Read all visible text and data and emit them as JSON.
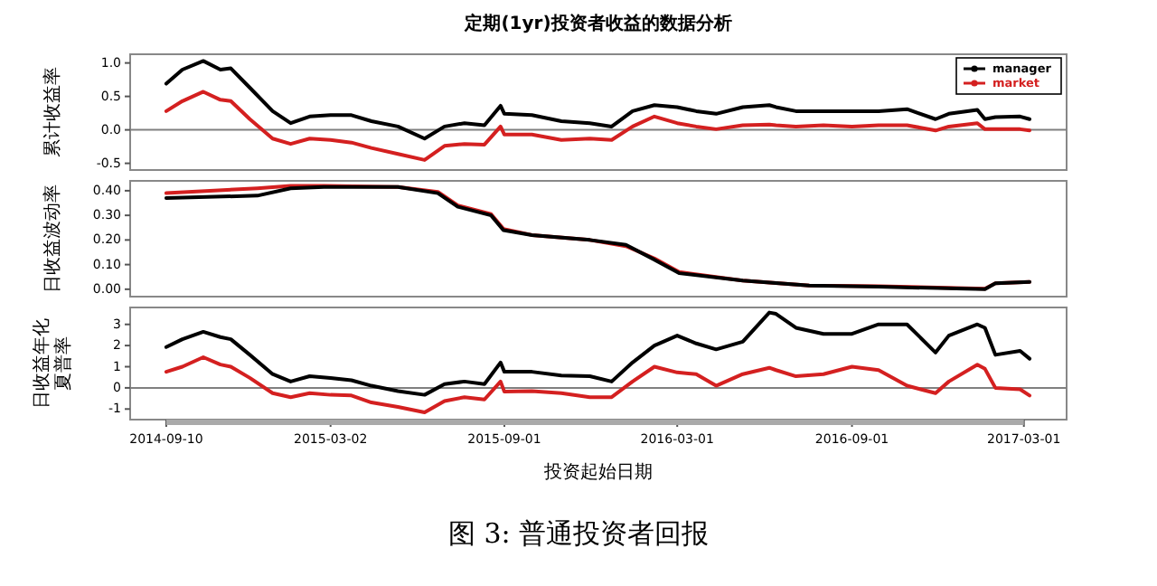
{
  "chart_data": [
    {
      "type": "line",
      "title": "定期(1yr)投资者收益的数据分析",
      "ylabel": "累计收益率",
      "legend": "top right",
      "tick_labels": "y",
      "xlim": [
        "2014-08-03",
        "2017-04-15"
      ],
      "ylim": [
        -0.6,
        1.13
      ],
      "yticks": [
        {
          "value": -0.5,
          "label": "-0.5"
        },
        {
          "value": 0,
          "label": "0.0"
        },
        {
          "value": 0.5,
          "label": "0.5"
        },
        {
          "value": 1,
          "label": "1.0"
        }
      ],
      "ref_lines": [
        {
          "axis": "y",
          "value": 0,
          "color": "#808080"
        }
      ],
      "x": [
        "2014-09-10",
        "2014-09-27",
        "2014-10-19",
        "2014-11-06",
        "2014-11-17",
        "2014-12-07",
        "2014-12-31",
        "2015-01-19",
        "2015-02-08",
        "2015-03-02",
        "2015-03-24",
        "2015-04-14",
        "2015-05-12",
        "2015-06-09",
        "2015-06-30",
        "2015-07-21",
        "2015-08-11",
        "2015-08-28",
        "2015-09-01",
        "2015-09-30",
        "2015-10-31",
        "2015-11-30",
        "2015-12-23",
        "2016-01-14",
        "2016-02-06",
        "2016-03-01",
        "2016-03-21",
        "2016-04-11",
        "2016-05-09",
        "2016-06-06",
        "2016-06-13",
        "2016-07-04",
        "2016-08-02",
        "2016-09-01",
        "2016-09-29",
        "2016-10-29",
        "2016-11-28",
        "2016-12-12",
        "2017-01-11",
        "2017-01-19",
        "2017-01-30",
        "2017-02-25",
        "2017-03-07"
      ],
      "series": [
        {
          "name": "manager",
          "color": "#000000",
          "values": [
            0.69,
            0.9,
            1.03,
            0.9,
            0.92,
            0.63,
            0.28,
            0.1,
            0.2,
            0.22,
            0.22,
            0.13,
            0.05,
            -0.13,
            0.05,
            0.1,
            0.07,
            0.36,
            0.24,
            0.22,
            0.13,
            0.1,
            0.05,
            0.28,
            0.37,
            0.34,
            0.28,
            0.24,
            0.34,
            0.37,
            0.34,
            0.28,
            0.28,
            0.28,
            0.28,
            0.31,
            0.16,
            0.24,
            0.3,
            0.16,
            0.19,
            0.2,
            0.16
          ]
        },
        {
          "name": "market",
          "color": "#d42020",
          "values": [
            0.28,
            0.43,
            0.57,
            0.45,
            0.43,
            0.16,
            -0.13,
            -0.21,
            -0.13,
            -0.15,
            -0.19,
            -0.27,
            -0.36,
            -0.45,
            -0.24,
            -0.21,
            -0.22,
            0.05,
            -0.07,
            -0.07,
            -0.15,
            -0.13,
            -0.15,
            0.05,
            0.2,
            0.1,
            0.05,
            0.01,
            0.07,
            0.08,
            0.07,
            0.05,
            0.07,
            0.05,
            0.07,
            0.07,
            -0.01,
            0.05,
            0.1,
            0.01,
            0.01,
            0.01,
            -0.01
          ]
        }
      ]
    },
    {
      "type": "line",
      "ylabel": "日收益波动率",
      "tick_labels": "y",
      "xlim": [
        "2014-08-03",
        "2017-04-15"
      ],
      "ylim": [
        -0.03,
        0.44
      ],
      "yticks": [
        {
          "value": 0,
          "label": "0.00"
        },
        {
          "value": 0.1,
          "label": "0.10"
        },
        {
          "value": 0.2,
          "label": "0.20"
        },
        {
          "value": 0.3,
          "label": "0.30"
        },
        {
          "value": 0.4,
          "label": "0.40"
        }
      ],
      "x": [
        "2014-09-10",
        "2014-12-15",
        "2015-01-19",
        "2015-02-23",
        "2015-05-12",
        "2015-06-23",
        "2015-07-14",
        "2015-08-18",
        "2015-08-31",
        "2015-09-30",
        "2015-11-30",
        "2016-01-07",
        "2016-02-06",
        "2016-03-03",
        "2016-05-09",
        "2016-07-18",
        "2016-09-29",
        "2017-01-19",
        "2017-01-30",
        "2017-03-07"
      ],
      "series": [
        {
          "color": "#d42020",
          "values": [
            0.39,
            0.41,
            0.42,
            0.42,
            0.415,
            0.395,
            0.34,
            0.305,
            0.245,
            0.22,
            0.2,
            0.175,
            0.125,
            0.07,
            0.035,
            0.015,
            0.012,
            0.002,
            0.024,
            0.03
          ]
        },
        {
          "color": "#000000",
          "values": [
            0.37,
            0.38,
            0.41,
            0.415,
            0.415,
            0.39,
            0.335,
            0.3,
            0.24,
            0.22,
            0.2,
            0.18,
            0.12,
            0.065,
            0.035,
            0.015,
            0.01,
            0.0,
            0.024,
            0.03
          ]
        }
      ]
    },
    {
      "type": "line",
      "ylabel": "日收益年化夏普率",
      "xlabel": "投资起始日期",
      "annotations": [
        "图 3: 普通投资者回报"
      ],
      "xlim": [
        "2014-08-03",
        "2017-04-15"
      ],
      "xticks": [
        {
          "value": "2014-09-10",
          "label": "2014-09-10"
        },
        {
          "value": "2015-03-02",
          "label": "2015-03-02"
        },
        {
          "value": "2015-09-01",
          "label": "2015-09-01"
        },
        {
          "value": "2016-03-01",
          "label": "2016-03-01"
        },
        {
          "value": "2016-09-01",
          "label": "2016-09-01"
        },
        {
          "value": "2017-03-01",
          "label": "2017-03-01"
        }
      ],
      "ylim": [
        -1.5,
        3.8
      ],
      "yticks": [
        -1,
        0,
        1,
        2,
        3
      ],
      "ref_lines": [
        {
          "axis": "y",
          "value": 0,
          "color": "#808080"
        }
      ],
      "x": [
        "2014-09-10",
        "2014-09-27",
        "2014-10-19",
        "2014-11-06",
        "2014-11-17",
        "2014-12-07",
        "2014-12-31",
        "2015-01-19",
        "2015-02-08",
        "2015-03-02",
        "2015-03-24",
        "2015-04-14",
        "2015-05-12",
        "2015-06-09",
        "2015-06-30",
        "2015-07-21",
        "2015-08-11",
        "2015-08-28",
        "2015-09-01",
        "2015-09-30",
        "2015-10-31",
        "2015-11-30",
        "2015-12-23",
        "2016-01-14",
        "2016-02-06",
        "2016-03-01",
        "2016-03-21",
        "2016-04-11",
        "2016-05-09",
        "2016-06-06",
        "2016-06-13",
        "2016-07-04",
        "2016-08-02",
        "2016-09-01",
        "2016-09-29",
        "2016-10-29",
        "2016-11-28",
        "2016-12-12",
        "2017-01-11",
        "2017-01-19",
        "2017-01-30",
        "2017-02-25",
        "2017-03-07"
      ],
      "series": [
        {
          "color": "#000000",
          "values": [
            1.93,
            2.3,
            2.65,
            2.4,
            2.3,
            1.56,
            0.65,
            0.3,
            0.55,
            0.47,
            0.36,
            0.1,
            -0.15,
            -0.33,
            0.18,
            0.3,
            0.18,
            1.2,
            0.76,
            0.76,
            0.58,
            0.55,
            0.3,
            1.2,
            2.0,
            2.47,
            2.1,
            1.82,
            2.18,
            3.56,
            3.5,
            2.84,
            2.55,
            2.55,
            3.0,
            3.0,
            1.67,
            2.47,
            3.0,
            2.84,
            1.56,
            1.75,
            1.38
          ]
        },
        {
          "color": "#d42020",
          "values": [
            0.76,
            1.0,
            1.45,
            1.1,
            1.0,
            0.47,
            -0.25,
            -0.44,
            -0.25,
            -0.33,
            -0.36,
            -0.69,
            -0.9,
            -1.16,
            -0.62,
            -0.44,
            -0.55,
            0.3,
            -0.18,
            -0.15,
            -0.25,
            -0.44,
            -0.44,
            0.3,
            1.0,
            0.73,
            0.65,
            0.1,
            0.65,
            0.95,
            0.84,
            0.55,
            0.65,
            1.0,
            0.84,
            0.1,
            -0.25,
            0.3,
            1.1,
            0.9,
            0.0,
            -0.07,
            -0.36
          ]
        }
      ]
    }
  ]
}
